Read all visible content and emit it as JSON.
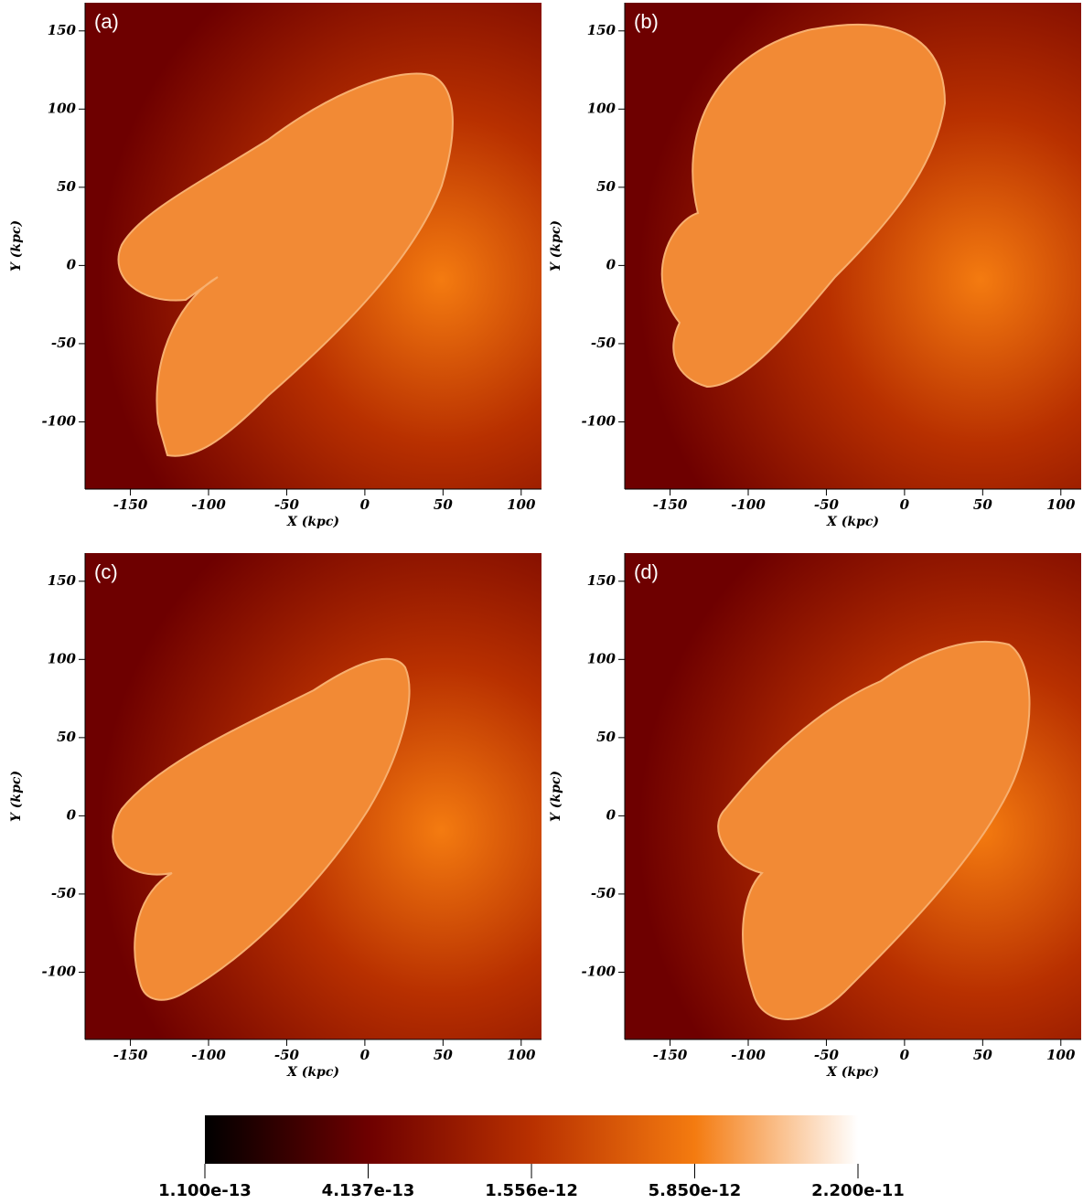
{
  "chart_data": [
    {
      "type": "image",
      "title": "(a)",
      "xlabel": "X (kpc)",
      "ylabel": "Y (kpc)",
      "xlim": [
        -179,
        113
      ],
      "ylim": [
        -143,
        168
      ],
      "xticks": [
        -150,
        -100,
        -50,
        0,
        50,
        100
      ],
      "yticks": [
        -100,
        -50,
        0,
        50,
        100,
        150
      ]
    },
    {
      "type": "image",
      "title": "(b)",
      "xlabel": "X (kpc)",
      "ylabel": "Y (kpc)",
      "xlim": [
        -179,
        113
      ],
      "ylim": [
        -143,
        168
      ],
      "xticks": [
        -150,
        -100,
        -50,
        0,
        50,
        100
      ],
      "yticks": [
        -100,
        -50,
        0,
        50,
        100,
        150
      ]
    },
    {
      "type": "image",
      "title": "(c)",
      "xlabel": "X (kpc)",
      "ylabel": "Y (kpc)",
      "xlim": [
        -179,
        113
      ],
      "ylim": [
        -143,
        168
      ],
      "xticks": [
        -150,
        -100,
        -50,
        0,
        50,
        100
      ],
      "yticks": [
        -100,
        -50,
        0,
        50,
        100,
        150
      ]
    },
    {
      "type": "image",
      "title": "(d)",
      "xlabel": "X (kpc)",
      "ylabel": "Y (kpc)",
      "xlim": [
        -179,
        113
      ],
      "ylim": [
        -143,
        168
      ],
      "xticks": [
        -150,
        -100,
        -50,
        0,
        50,
        100
      ],
      "yticks": [
        -100,
        -50,
        0,
        50,
        100,
        150
      ]
    }
  ],
  "colorbar": {
    "lim": [
      1.1e-13,
      2.2e-11
    ],
    "log": true,
    "ticks": [
      {
        "value": 1.1e-13,
        "label": "1.100e-13"
      },
      {
        "value": 4.137e-13,
        "label": "4.137e-13"
      },
      {
        "value": 1.556e-12,
        "label": "1.556e-12"
      },
      {
        "value": 5.85e-12,
        "label": "5.850e-12"
      },
      {
        "value": 2.2e-11,
        "label": "2.200e-11"
      }
    ],
    "colors": [
      "#000000",
      "#6e0000",
      "#b83000",
      "#f47b10",
      "#ffffff"
    ]
  }
}
